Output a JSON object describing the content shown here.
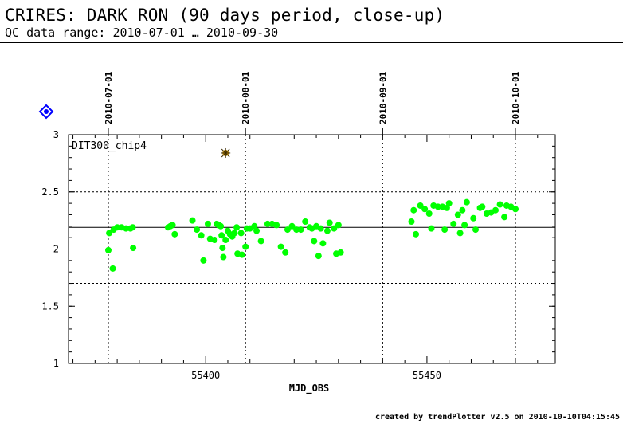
{
  "header": {
    "title": "CRIRES: DARK RON (90 days period, close-up)",
    "subtitle": "QC data range: 2010-07-01 … 2010-09-30"
  },
  "footer": {
    "text": "created by trendPlotter v2.5 on 2010-10-10T04:15:45"
  },
  "chart_data": {
    "type": "scatter",
    "panel_label": "DIT300_chip4",
    "xlabel": "MJD_OBS",
    "ylabel": "",
    "xlim": [
      55369,
      55479
    ],
    "ylim": [
      1,
      3
    ],
    "x_ticks": [
      55400,
      55450
    ],
    "y_ticks": [
      1,
      1.5,
      2,
      2.5,
      3
    ],
    "date_markers": [
      {
        "label": "2010-07-01",
        "mjd": 55378
      },
      {
        "label": "2010-08-01",
        "mjd": 55409
      },
      {
        "label": "2010-09-01",
        "mjd": 55440
      },
      {
        "label": "2010-10-01",
        "mjd": 55470
      }
    ],
    "reference_line": 2.19,
    "threshold_lines": [
      1.7,
      2.5
    ],
    "colors": {
      "points": "#00ff00",
      "outlier": "#b8860b",
      "icon": "#0000ff"
    },
    "series": [
      {
        "points": [
          [
            55378.0,
            1.99
          ],
          [
            55378.2,
            2.14
          ],
          [
            55379.0,
            1.83
          ],
          [
            55379.2,
            2.17
          ],
          [
            55380.0,
            2.19
          ],
          [
            55381.0,
            2.19
          ],
          [
            55382.0,
            2.18
          ],
          [
            55383.0,
            2.18
          ],
          [
            55383.5,
            2.19
          ],
          [
            55383.6,
            2.01
          ],
          [
            55391.5,
            2.19
          ],
          [
            55392.0,
            2.2
          ],
          [
            55392.5,
            2.21
          ],
          [
            55393.0,
            2.13
          ],
          [
            55397.0,
            2.25
          ],
          [
            55398.0,
            2.17
          ],
          [
            55399.0,
            2.12
          ],
          [
            55399.5,
            1.9
          ],
          [
            55400.5,
            2.22
          ],
          [
            55401.0,
            2.09
          ],
          [
            55402.0,
            2.08
          ],
          [
            55402.5,
            2.22
          ],
          [
            55403.0,
            2.21
          ],
          [
            55403.4,
            2.2
          ],
          [
            55403.6,
            2.12
          ],
          [
            55403.8,
            2.01
          ],
          [
            55404.0,
            1.93
          ],
          [
            55404.5,
            2.08
          ],
          [
            55405.0,
            2.16
          ],
          [
            55405.5,
            2.13
          ],
          [
            55406.0,
            2.11
          ],
          [
            55406.5,
            2.14
          ],
          [
            55407.0,
            2.19
          ],
          [
            55407.2,
            1.96
          ],
          [
            55408.0,
            2.14
          ],
          [
            55408.2,
            1.95
          ],
          [
            55409.0,
            2.02
          ],
          [
            55409.3,
            2.18
          ],
          [
            55410.0,
            2.18
          ],
          [
            55411.0,
            2.2
          ],
          [
            55411.5,
            2.16
          ],
          [
            55412.5,
            2.07
          ],
          [
            55414.0,
            2.22
          ],
          [
            55415.0,
            2.22
          ],
          [
            55416.0,
            2.21
          ],
          [
            55417.0,
            2.02
          ],
          [
            55418.0,
            1.97
          ],
          [
            55418.5,
            2.17
          ],
          [
            55419.5,
            2.2
          ],
          [
            55420.5,
            2.17
          ],
          [
            55421.5,
            2.17
          ],
          [
            55422.5,
            2.24
          ],
          [
            55423.5,
            2.19
          ],
          [
            55424.0,
            2.18
          ],
          [
            55424.5,
            2.07
          ],
          [
            55425.0,
            2.2
          ],
          [
            55425.5,
            1.94
          ],
          [
            55426.0,
            2.18
          ],
          [
            55426.5,
            2.05
          ],
          [
            55427.5,
            2.16
          ],
          [
            55428.0,
            2.23
          ],
          [
            55429.0,
            2.18
          ],
          [
            55429.5,
            1.96
          ],
          [
            55430.0,
            2.21
          ],
          [
            55430.5,
            1.97
          ],
          [
            55446.5,
            2.24
          ],
          [
            55447.0,
            2.34
          ],
          [
            55447.5,
            2.13
          ],
          [
            55448.5,
            2.38
          ],
          [
            55449.5,
            2.35
          ],
          [
            55450.5,
            2.31
          ],
          [
            55451.0,
            2.18
          ],
          [
            55451.5,
            2.38
          ],
          [
            55452.5,
            2.37
          ],
          [
            55453.5,
            2.37
          ],
          [
            55454.0,
            2.17
          ],
          [
            55454.5,
            2.36
          ],
          [
            55455.0,
            2.4
          ],
          [
            55456.0,
            2.22
          ],
          [
            55457.0,
            2.3
          ],
          [
            55457.5,
            2.14
          ],
          [
            55458.0,
            2.34
          ],
          [
            55458.5,
            2.21
          ],
          [
            55459.0,
            2.41
          ],
          [
            55460.5,
            2.27
          ],
          [
            55461.0,
            2.17
          ],
          [
            55462.0,
            2.36
          ],
          [
            55462.5,
            2.37
          ],
          [
            55463.5,
            2.31
          ],
          [
            55464.5,
            2.32
          ],
          [
            55465.5,
            2.34
          ],
          [
            55466.5,
            2.39
          ],
          [
            55467.5,
            2.28
          ],
          [
            55468.0,
            2.38
          ],
          [
            55469.0,
            2.37
          ],
          [
            55470.0,
            2.35
          ]
        ]
      }
    ],
    "outliers": [
      [
        55404.5,
        2.84
      ]
    ]
  }
}
